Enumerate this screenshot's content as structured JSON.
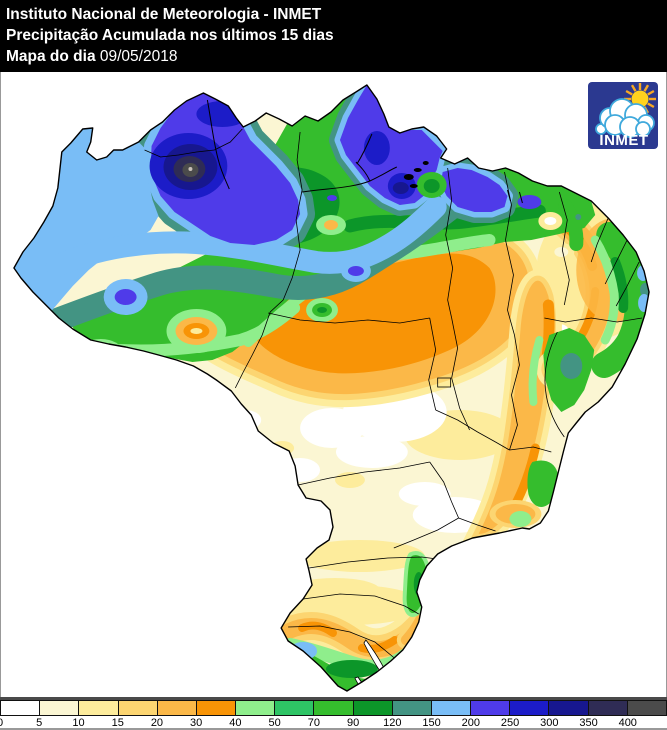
{
  "header": {
    "line1": "Instituto Nacional de Meteorologia - INMET",
    "line2": "Precipitação Acumulada nos últimos 15 dias",
    "line3_label": "Mapa do dia ",
    "line3_date": "09/05/2018"
  },
  "logo": {
    "text": "INMET",
    "bg_color": "#2B3990",
    "sun_color": "#FFD21E",
    "ray_color": "#F7A823",
    "cloud_outline_color": "#3FA9DC",
    "text_color": "#FFFFFF"
  },
  "legend": {
    "title": "precipitation scale (mm)",
    "labels": [
      "0",
      "5",
      "10",
      "15",
      "20",
      "30",
      "40",
      "50",
      "70",
      "90",
      "120",
      "150",
      "200",
      "250",
      "300",
      "350",
      "400"
    ],
    "colors": [
      "#FFFFFF",
      "#FBF6D3",
      "#FDEC9C",
      "#FCD571",
      "#FBB848",
      "#F89406",
      "#8FEE8C",
      "#2EC465",
      "#35BD2D",
      "#0C9629",
      "#439483",
      "#79BDF6",
      "#4F3BE9",
      "#1C1CC8",
      "#17178F",
      "#2F2C55",
      "#4B4B4B"
    ]
  }
}
